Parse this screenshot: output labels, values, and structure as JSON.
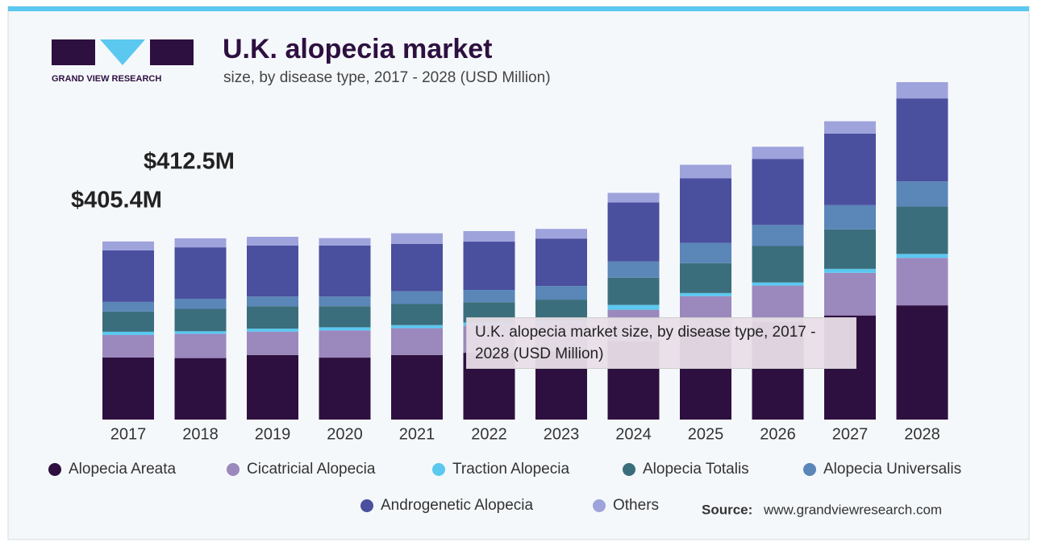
{
  "chart_data": {
    "type": "stacked-bar",
    "title": "U.K. alopecia market",
    "subtitle": "size, by disease type, 2017 - 2028 (USD Million)",
    "brand": "GRAND VIEW RESEARCH",
    "annotations": [
      "$405.4M",
      "$412.5M"
    ],
    "source_label": "Source:",
    "source": "www.grandviewresearch.com",
    "tooltip": "U.K. alopecia market size, by disease type, 2017 - 2028 (USD Million)",
    "categories": [
      "2017",
      "2018",
      "2019",
      "2020",
      "2021",
      "2022",
      "2023",
      "2024",
      "2025",
      "2026",
      "2027",
      "2028"
    ],
    "series": [
      {
        "name": "Alopecia Areata",
        "color": "#2e1040",
        "values": [
          141.2,
          140,
          147,
          141,
          147,
          152,
          156,
          178,
          204,
          222,
          237,
          260
        ]
      },
      {
        "name": "Cicatricial Alopecia",
        "color": "#9b88bd",
        "values": [
          51.4,
          55,
          53,
          62,
          61,
          62,
          62,
          72,
          77,
          83,
          97,
          108
        ]
      },
      {
        "name": "Traction Alopecia",
        "color": "#5bc8f0",
        "values": [
          7.3,
          6,
          7,
          7,
          7,
          7,
          7,
          11,
          7,
          7,
          9,
          9
        ]
      },
      {
        "name": "Alopecia Totalis",
        "color": "#3b6e7c",
        "values": [
          45.9,
          51,
          51,
          48,
          48,
          46,
          48,
          62,
          68,
          83,
          90,
          108
        ]
      },
      {
        "name": "Alopecia Universalis",
        "color": "#5a86b8",
        "values": [
          22.0,
          23,
          22,
          22,
          29,
          28,
          31,
          37,
          46,
          48,
          55,
          57
        ]
      },
      {
        "name": "Androgenetic Alopecia",
        "color": "#4a4f9e",
        "values": [
          117.4,
          117,
          116,
          116,
          108,
          110,
          108,
          134,
          147,
          150,
          163,
          189
        ]
      },
      {
        "name": "Others",
        "color": "#9ea3dc",
        "values": [
          20.2,
          20.5,
          20,
          17,
          24,
          24,
          22,
          22,
          31,
          28,
          28,
          37
        ]
      }
    ]
  }
}
